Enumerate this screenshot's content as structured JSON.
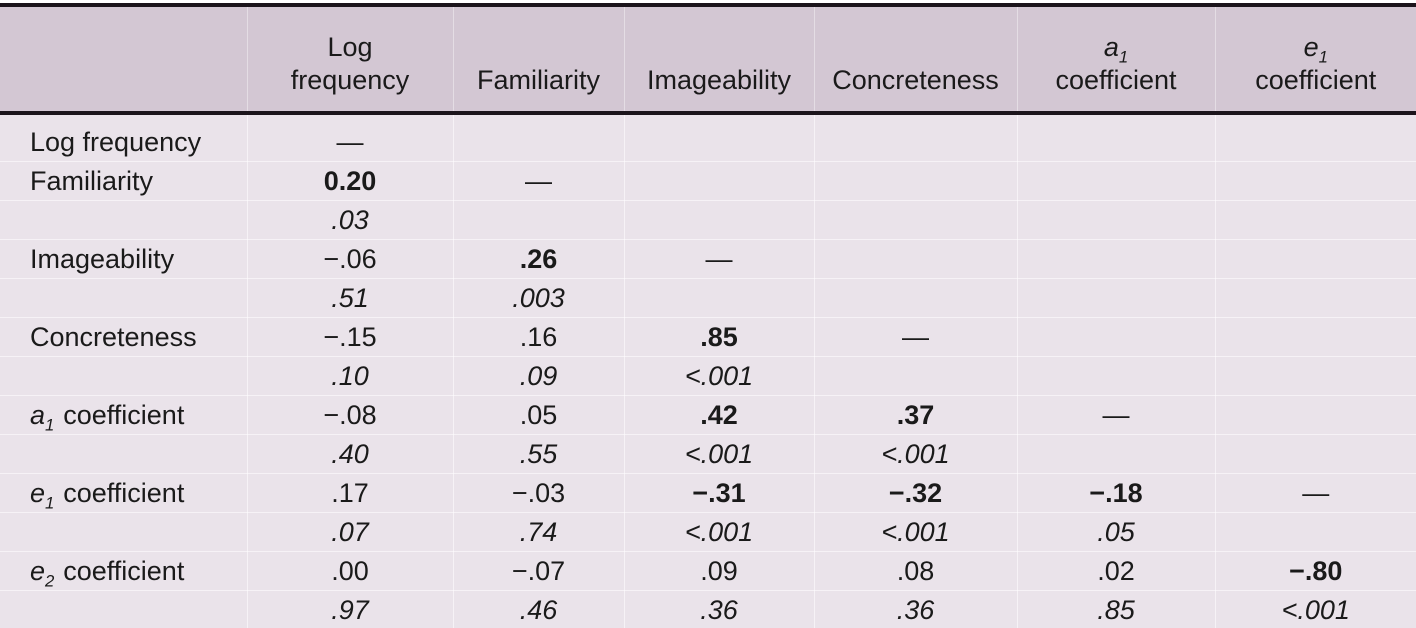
{
  "table": {
    "colors": {
      "header_bg": "#d3c7d3",
      "body_bg": "#eae3ea",
      "rule": "#1b141b"
    },
    "header": [
      {
        "lines": []
      },
      {
        "lines": [
          "Log",
          "frequency"
        ]
      },
      {
        "lines": [
          "Familiarity"
        ]
      },
      {
        "lines": [
          "Imageability"
        ]
      },
      {
        "lines": [
          "Concreteness"
        ]
      },
      {
        "lines": [
          {
            "var": "a",
            "sub": "1"
          },
          "coefficient"
        ]
      },
      {
        "lines": [
          {
            "var": "e",
            "sub": "1"
          },
          "coefficient"
        ]
      }
    ],
    "rows": [
      {
        "label": {
          "text": "Log frequency"
        },
        "values": [
          {
            "v": "—"
          },
          null,
          null,
          null,
          null,
          null
        ],
        "p": null
      },
      {
        "label": {
          "text": "Familiarity"
        },
        "values": [
          {
            "v": "0.20",
            "bold": true
          },
          {
            "v": "—"
          },
          null,
          null,
          null,
          null
        ],
        "p": [
          ".03",
          null,
          null,
          null,
          null,
          null
        ]
      },
      {
        "label": {
          "text": "Imageability"
        },
        "values": [
          {
            "v": "−.06"
          },
          {
            "v": ".26",
            "bold": true
          },
          {
            "v": "—"
          },
          null,
          null,
          null
        ],
        "p": [
          ".51",
          ".003",
          null,
          null,
          null,
          null
        ]
      },
      {
        "label": {
          "text": "Concreteness"
        },
        "values": [
          {
            "v": "−.15"
          },
          {
            "v": ".16"
          },
          {
            "v": ".85",
            "bold": true
          },
          {
            "v": "—"
          },
          null,
          null
        ],
        "p": [
          ".10",
          ".09",
          "<.001",
          null,
          null,
          null
        ]
      },
      {
        "label": {
          "var": "a",
          "sub": "1",
          "word": "coefficient"
        },
        "values": [
          {
            "v": "−.08"
          },
          {
            "v": ".05"
          },
          {
            "v": ".42",
            "bold": true
          },
          {
            "v": ".37",
            "bold": true
          },
          {
            "v": "—"
          },
          null
        ],
        "p": [
          ".40",
          ".55",
          "<.001",
          "<.001",
          null,
          null
        ]
      },
      {
        "label": {
          "var": "e",
          "sub": "1",
          "word": "coefficient"
        },
        "values": [
          {
            "v": ".17"
          },
          {
            "v": "−.03"
          },
          {
            "v": "−.31",
            "bold": true
          },
          {
            "v": "−.32",
            "bold": true
          },
          {
            "v": "−.18",
            "bold": true
          },
          {
            "v": "—"
          }
        ],
        "p": [
          ".07",
          ".74",
          "<.001",
          "<.001",
          ".05",
          null
        ]
      },
      {
        "label": {
          "var": "e",
          "sub": "2",
          "word": "coefficient"
        },
        "values": [
          {
            "v": ".00"
          },
          {
            "v": "−.07"
          },
          {
            "v": ".09"
          },
          {
            "v": ".08"
          },
          {
            "v": ".02"
          },
          {
            "v": "−.80",
            "bold": true
          }
        ],
        "p": [
          ".97",
          ".46",
          ".36",
          ".36",
          ".85",
          "<.001"
        ]
      }
    ]
  }
}
